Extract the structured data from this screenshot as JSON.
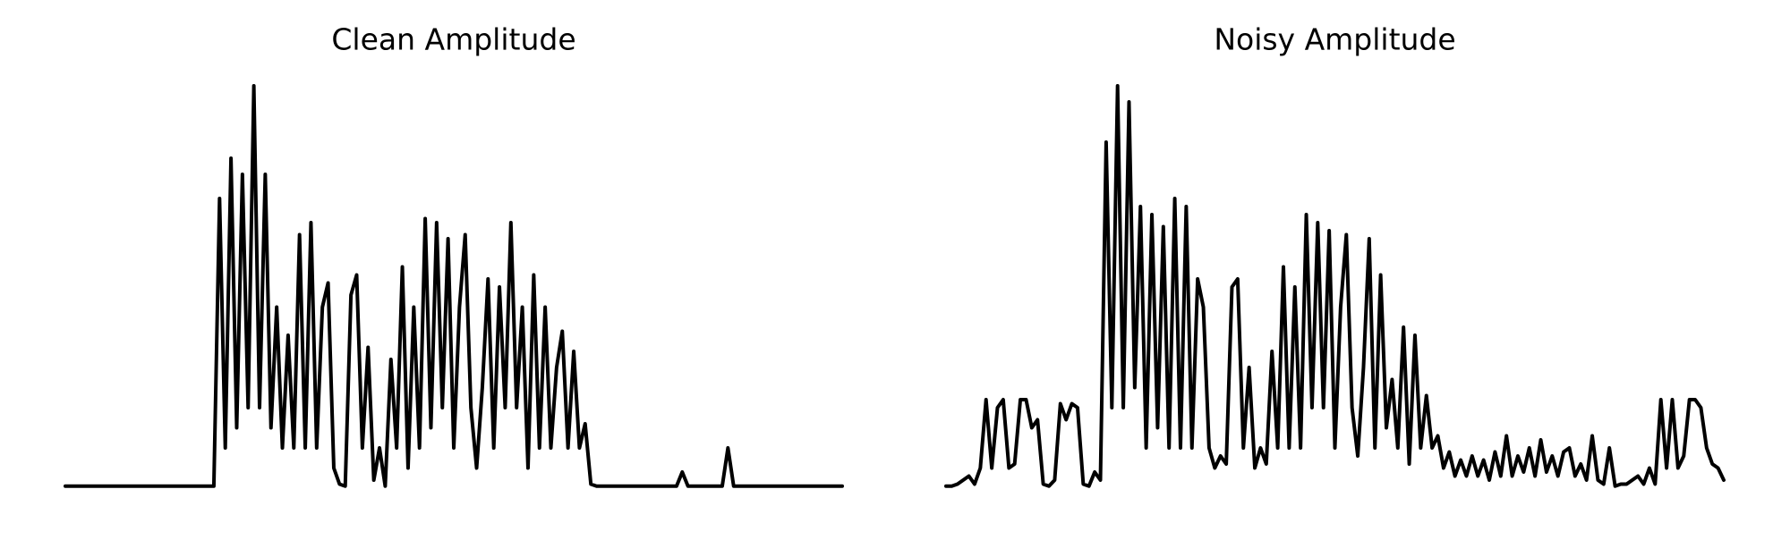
{
  "chart_data": [
    {
      "type": "line",
      "title": "Clean Amplitude",
      "color": "#000000",
      "ylim": [
        0,
        1
      ],
      "values": [
        0.005,
        0.005,
        0.005,
        0.005,
        0.005,
        0.005,
        0.005,
        0.005,
        0.005,
        0.005,
        0.005,
        0.005,
        0.005,
        0.005,
        0.005,
        0.005,
        0.005,
        0.005,
        0.005,
        0.005,
        0.005,
        0.005,
        0.005,
        0.005,
        0.005,
        0.005,
        0.005,
        0.72,
        0.1,
        0.82,
        0.15,
        0.78,
        0.2,
        1.0,
        0.2,
        0.78,
        0.15,
        0.45,
        0.1,
        0.38,
        0.1,
        0.63,
        0.1,
        0.66,
        0.1,
        0.45,
        0.51,
        0.05,
        0.01,
        0.005,
        0.48,
        0.53,
        0.1,
        0.35,
        0.02,
        0.1,
        0.005,
        0.32,
        0.1,
        0.55,
        0.05,
        0.45,
        0.1,
        0.67,
        0.15,
        0.66,
        0.2,
        0.62,
        0.1,
        0.45,
        0.63,
        0.2,
        0.05,
        0.25,
        0.52,
        0.1,
        0.5,
        0.2,
        0.66,
        0.2,
        0.45,
        0.05,
        0.53,
        0.1,
        0.45,
        0.1,
        0.3,
        0.39,
        0.1,
        0.34,
        0.1,
        0.16,
        0.01,
        0.005,
        0.005,
        0.005,
        0.005,
        0.005,
        0.005,
        0.005,
        0.005,
        0.005,
        0.005,
        0.005,
        0.005,
        0.005,
        0.005,
        0.005,
        0.04,
        0.005,
        0.005,
        0.005,
        0.005,
        0.005,
        0.005,
        0.005,
        0.1,
        0.005,
        0.005,
        0.005,
        0.005,
        0.005,
        0.005,
        0.005,
        0.005,
        0.005,
        0.005,
        0.005,
        0.005,
        0.005,
        0.005,
        0.005,
        0.005,
        0.005,
        0.005,
        0.005,
        0.005
      ]
    },
    {
      "type": "line",
      "title": "Noisy Amplitude",
      "color": "#000000",
      "ylim": [
        0,
        1
      ],
      "values": [
        0.005,
        0.005,
        0.01,
        0.02,
        0.03,
        0.01,
        0.05,
        0.22,
        0.05,
        0.2,
        0.22,
        0.05,
        0.06,
        0.22,
        0.22,
        0.15,
        0.17,
        0.01,
        0.005,
        0.02,
        0.21,
        0.17,
        0.21,
        0.2,
        0.01,
        0.005,
        0.04,
        0.02,
        0.86,
        0.2,
        1.0,
        0.2,
        0.96,
        0.25,
        0.7,
        0.1,
        0.68,
        0.15,
        0.65,
        0.1,
        0.72,
        0.1,
        0.7,
        0.1,
        0.52,
        0.45,
        0.1,
        0.05,
        0.08,
        0.06,
        0.5,
        0.52,
        0.1,
        0.3,
        0.05,
        0.1,
        0.06,
        0.34,
        0.1,
        0.55,
        0.1,
        0.5,
        0.1,
        0.68,
        0.2,
        0.66,
        0.2,
        0.64,
        0.1,
        0.45,
        0.63,
        0.2,
        0.08,
        0.3,
        0.62,
        0.1,
        0.53,
        0.15,
        0.27,
        0.1,
        0.4,
        0.06,
        0.38,
        0.1,
        0.23,
        0.1,
        0.13,
        0.05,
        0.09,
        0.03,
        0.07,
        0.03,
        0.08,
        0.03,
        0.07,
        0.02,
        0.09,
        0.03,
        0.13,
        0.03,
        0.08,
        0.04,
        0.1,
        0.03,
        0.12,
        0.04,
        0.08,
        0.03,
        0.09,
        0.1,
        0.03,
        0.06,
        0.02,
        0.13,
        0.02,
        0.01,
        0.1,
        0.005,
        0.01,
        0.01,
        0.02,
        0.03,
        0.01,
        0.05,
        0.01,
        0.22,
        0.05,
        0.22,
        0.05,
        0.08,
        0.22,
        0.22,
        0.2,
        0.1,
        0.06,
        0.05,
        0.02
      ]
    }
  ]
}
